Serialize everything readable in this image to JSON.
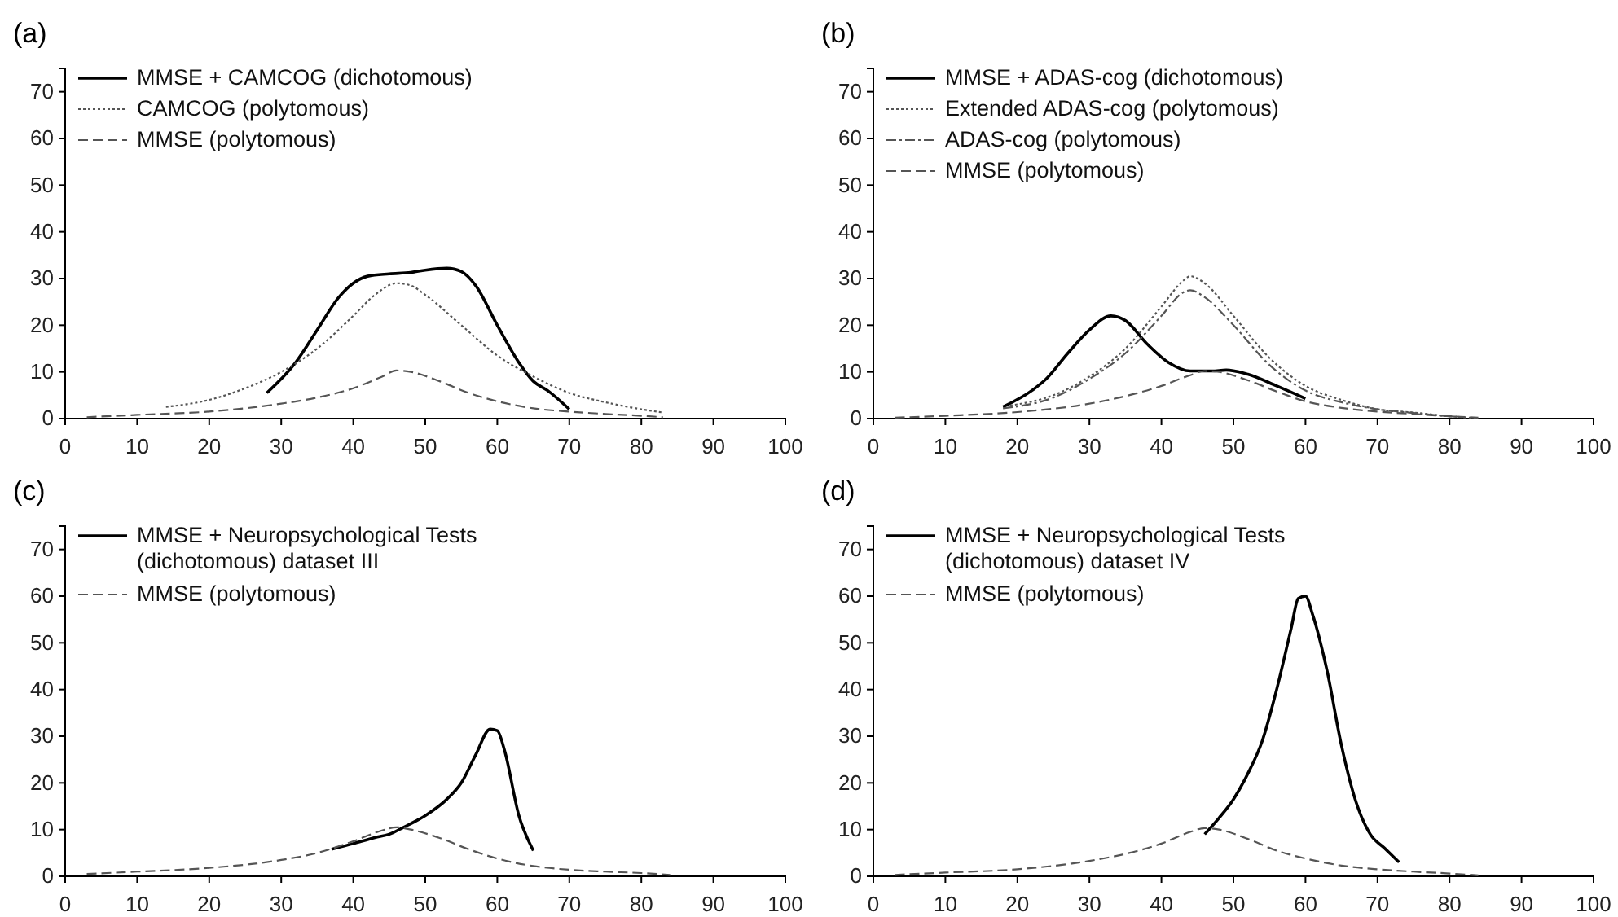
{
  "chart_data": [
    {
      "type": "line",
      "title": "(a)",
      "xlim": [
        0,
        100
      ],
      "ylim": [
        0,
        75
      ],
      "xticks": [
        0,
        10,
        20,
        30,
        40,
        50,
        60,
        70,
        80,
        90,
        100
      ],
      "yticks": [
        0,
        10,
        20,
        30,
        40,
        50,
        60,
        70
      ],
      "legend": "top left",
      "grid": false,
      "series": [
        {
          "name": "MMSE + CAMCOG (dichotomous)",
          "color": "#000000",
          "line_style": "solid",
          "x": [
            28,
            32,
            35,
            38,
            40,
            42,
            45,
            48,
            50,
            53,
            55,
            57,
            60,
            63,
            65,
            67,
            70
          ],
          "values": [
            5.5,
            12,
            19,
            26,
            29,
            30.5,
            31,
            31.3,
            31.8,
            32.2,
            31.5,
            28.5,
            20,
            12,
            8,
            6,
            2
          ]
        },
        {
          "name": "CAMCOG (polytomous)",
          "color": "#555555",
          "line_style": "dotted",
          "x": [
            14,
            20,
            25,
            30,
            35,
            40,
            43,
            46,
            48,
            50,
            55,
            60,
            65,
            70,
            75,
            80,
            83
          ],
          "values": [
            2.5,
            4,
            6.5,
            10,
            15,
            22,
            26.5,
            29,
            28.5,
            26.5,
            20,
            13.5,
            9,
            5.5,
            3.5,
            2,
            1.3
          ]
        },
        {
          "name": "MMSE (polytomous)",
          "color": "#555555",
          "line_style": "dashed",
          "x": [
            3,
            10,
            20,
            30,
            35,
            40,
            44,
            46,
            48,
            52,
            56,
            60,
            65,
            70,
            75,
            80,
            83
          ],
          "values": [
            0.3,
            0.8,
            1.5,
            3.2,
            4.5,
            6.5,
            9,
            10.3,
            10,
            8,
            5.5,
            3.7,
            2.2,
            1.5,
            1,
            0.6,
            0.3
          ]
        }
      ]
    },
    {
      "type": "line",
      "title": "(b)",
      "xlim": [
        0,
        100
      ],
      "ylim": [
        0,
        75
      ],
      "xticks": [
        0,
        10,
        20,
        30,
        40,
        50,
        60,
        70,
        80,
        90,
        100
      ],
      "yticks": [
        0,
        10,
        20,
        30,
        40,
        50,
        60,
        70
      ],
      "legend": "top left",
      "grid": false,
      "series": [
        {
          "name": "MMSE + ADAS-cog (dichotomous)",
          "color": "#000000",
          "line_style": "solid",
          "x": [
            18,
            22,
            24,
            27,
            30,
            33,
            35,
            38,
            41,
            44,
            47,
            49,
            52,
            56,
            60
          ],
          "values": [
            2.5,
            6,
            8.5,
            14,
            19,
            22,
            21,
            16,
            12,
            10.2,
            10.2,
            10.4,
            9.5,
            7,
            4.3
          ]
        },
        {
          "name": "Extended ADAS-cog (polytomous)",
          "color": "#555555",
          "line_style": "dotted",
          "x": [
            19,
            25,
            30,
            35,
            40,
            43,
            44,
            46,
            50,
            55,
            60,
            65,
            70,
            75,
            80,
            84
          ],
          "values": [
            2.8,
            5,
            9,
            15,
            24,
            29.5,
            30.5,
            29,
            22,
            13,
            7,
            4,
            2,
            1.3,
            0.5,
            0.1
          ]
        },
        {
          "name": "ADAS-cog (polytomous)",
          "color": "#555555",
          "line_style": "dashdot",
          "x": [
            18,
            25,
            30,
            35,
            40,
            43,
            44,
            46,
            50,
            55,
            60,
            65,
            70,
            75,
            80,
            82
          ],
          "values": [
            2.2,
            4.5,
            8.5,
            14,
            22,
            27,
            27.5,
            26,
            20,
            11.5,
            6,
            3.5,
            2,
            1.2,
            0.5,
            0.3
          ]
        },
        {
          "name": "MMSE (polytomous)",
          "color": "#555555",
          "line_style": "dashed",
          "x": [
            3,
            10,
            20,
            30,
            35,
            40,
            44,
            46,
            48,
            52,
            56,
            60,
            65,
            70,
            75,
            80,
            84
          ],
          "values": [
            0.2,
            0.6,
            1.4,
            3.2,
            4.8,
            7,
            9.3,
            10.2,
            10,
            8.2,
            5.8,
            3.7,
            2.3,
            1.5,
            1,
            0.5,
            0.2
          ]
        }
      ]
    },
    {
      "type": "line",
      "title": "(c)",
      "xlim": [
        0,
        100
      ],
      "ylim": [
        0,
        75
      ],
      "xticks": [
        0,
        10,
        20,
        30,
        40,
        50,
        60,
        70,
        80,
        90,
        100
      ],
      "yticks": [
        0,
        10,
        20,
        30,
        40,
        50,
        60,
        70
      ],
      "legend": "top left",
      "grid": false,
      "series": [
        {
          "name": "MMSE + Neuropsychological Tests (dichotomous) dataset III",
          "color": "#000000",
          "line_style": "solid",
          "x": [
            37,
            40,
            43,
            45,
            47,
            50,
            53,
            55,
            57,
            59,
            60,
            61,
            63,
            65
          ],
          "values": [
            5.8,
            7,
            8.3,
            9,
            10.5,
            13,
            16.5,
            20,
            26,
            31.5,
            31.2,
            27,
            13,
            5.5
          ]
        },
        {
          "name": "MMSE (polytomous)",
          "color": "#555555",
          "line_style": "dashed",
          "x": [
            3,
            10,
            20,
            30,
            35,
            40,
            44,
            46,
            48,
            52,
            56,
            60,
            65,
            70,
            75,
            80,
            84
          ],
          "values": [
            0.5,
            1,
            1.8,
            3.5,
            5,
            7.5,
            9.8,
            10.5,
            10,
            8.2,
            5.8,
            3.8,
            2.2,
            1.4,
            1,
            0.7,
            0.3
          ]
        }
      ]
    },
    {
      "type": "line",
      "title": "(d)",
      "xlim": [
        0,
        100
      ],
      "ylim": [
        0,
        75
      ],
      "xticks": [
        0,
        10,
        20,
        30,
        40,
        50,
        60,
        70,
        80,
        90,
        100
      ],
      "yticks": [
        0,
        10,
        20,
        30,
        40,
        50,
        60,
        70
      ],
      "legend": "top left",
      "grid": false,
      "series": [
        {
          "name": "MMSE + Neuropsychological Tests (dichotomous) dataset IV",
          "color": "#000000",
          "line_style": "solid",
          "x": [
            46,
            48,
            50,
            52,
            54,
            56,
            58,
            59,
            60,
            61,
            63,
            65,
            67,
            69,
            71,
            73
          ],
          "values": [
            9,
            12.5,
            16.5,
            22,
            29,
            40,
            53,
            59.5,
            60,
            56,
            44,
            28,
            16,
            9,
            6,
            3
          ]
        },
        {
          "name": "MMSE (polytomous)",
          "color": "#555555",
          "line_style": "dashed",
          "x": [
            3,
            10,
            20,
            30,
            35,
            40,
            44,
            46,
            48,
            52,
            56,
            60,
            65,
            70,
            75,
            80,
            84
          ],
          "values": [
            0.3,
            0.8,
            1.5,
            3.3,
            4.8,
            7,
            9.5,
            10.3,
            10,
            8,
            5.5,
            3.8,
            2.3,
            1.5,
            1,
            0.6,
            0.2
          ]
        }
      ]
    }
  ]
}
